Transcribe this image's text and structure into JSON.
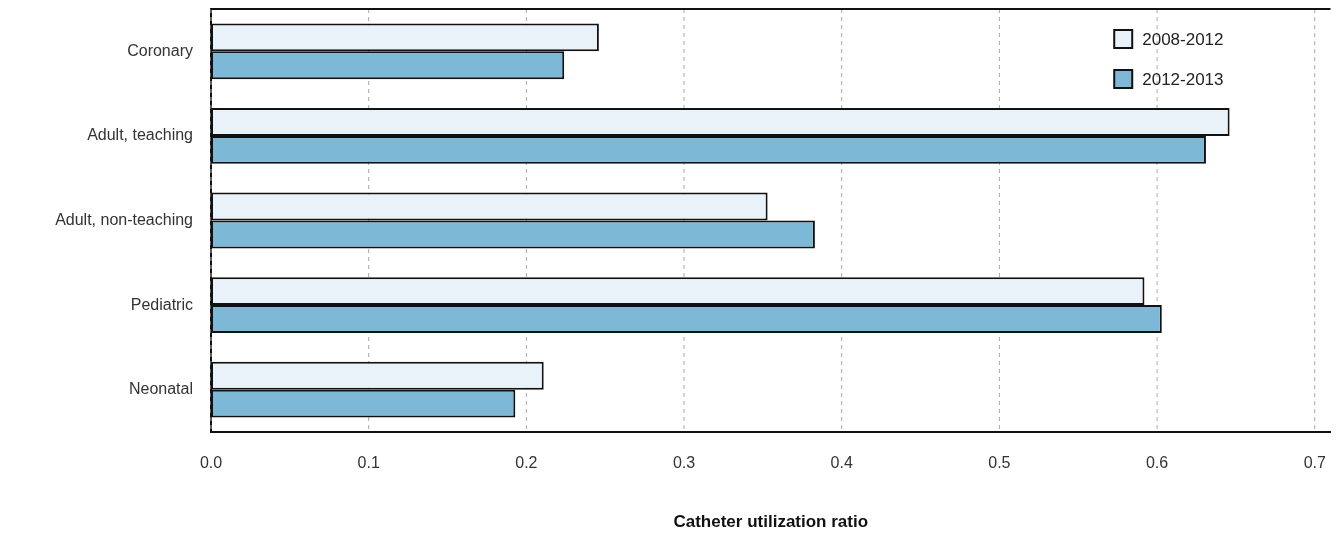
{
  "chart_data": {
    "type": "bar",
    "orientation": "horizontal",
    "xlabel": "Catheter utilization ratio",
    "categories": [
      "Coronary",
      "Adult, teaching",
      "Adult, non-teaching",
      "Pediatric",
      "Neonatal"
    ],
    "series": [
      {
        "name": "2008-2012",
        "color": "#eaf2f9",
        "values": [
          0.246,
          0.646,
          0.353,
          0.592,
          0.211
        ]
      },
      {
        "name": "2012-2013",
        "color": "#7db9d6",
        "values": [
          0.224,
          0.631,
          0.383,
          0.603,
          0.193
        ]
      }
    ],
    "xlim": [
      0,
      0.71
    ],
    "xticks": [
      {
        "value": 0,
        "label": "0.0"
      },
      0.1,
      0.2,
      0.3,
      0.4,
      0.5,
      0.6,
      0.7
    ],
    "grid": "x",
    "legend": "top right"
  }
}
